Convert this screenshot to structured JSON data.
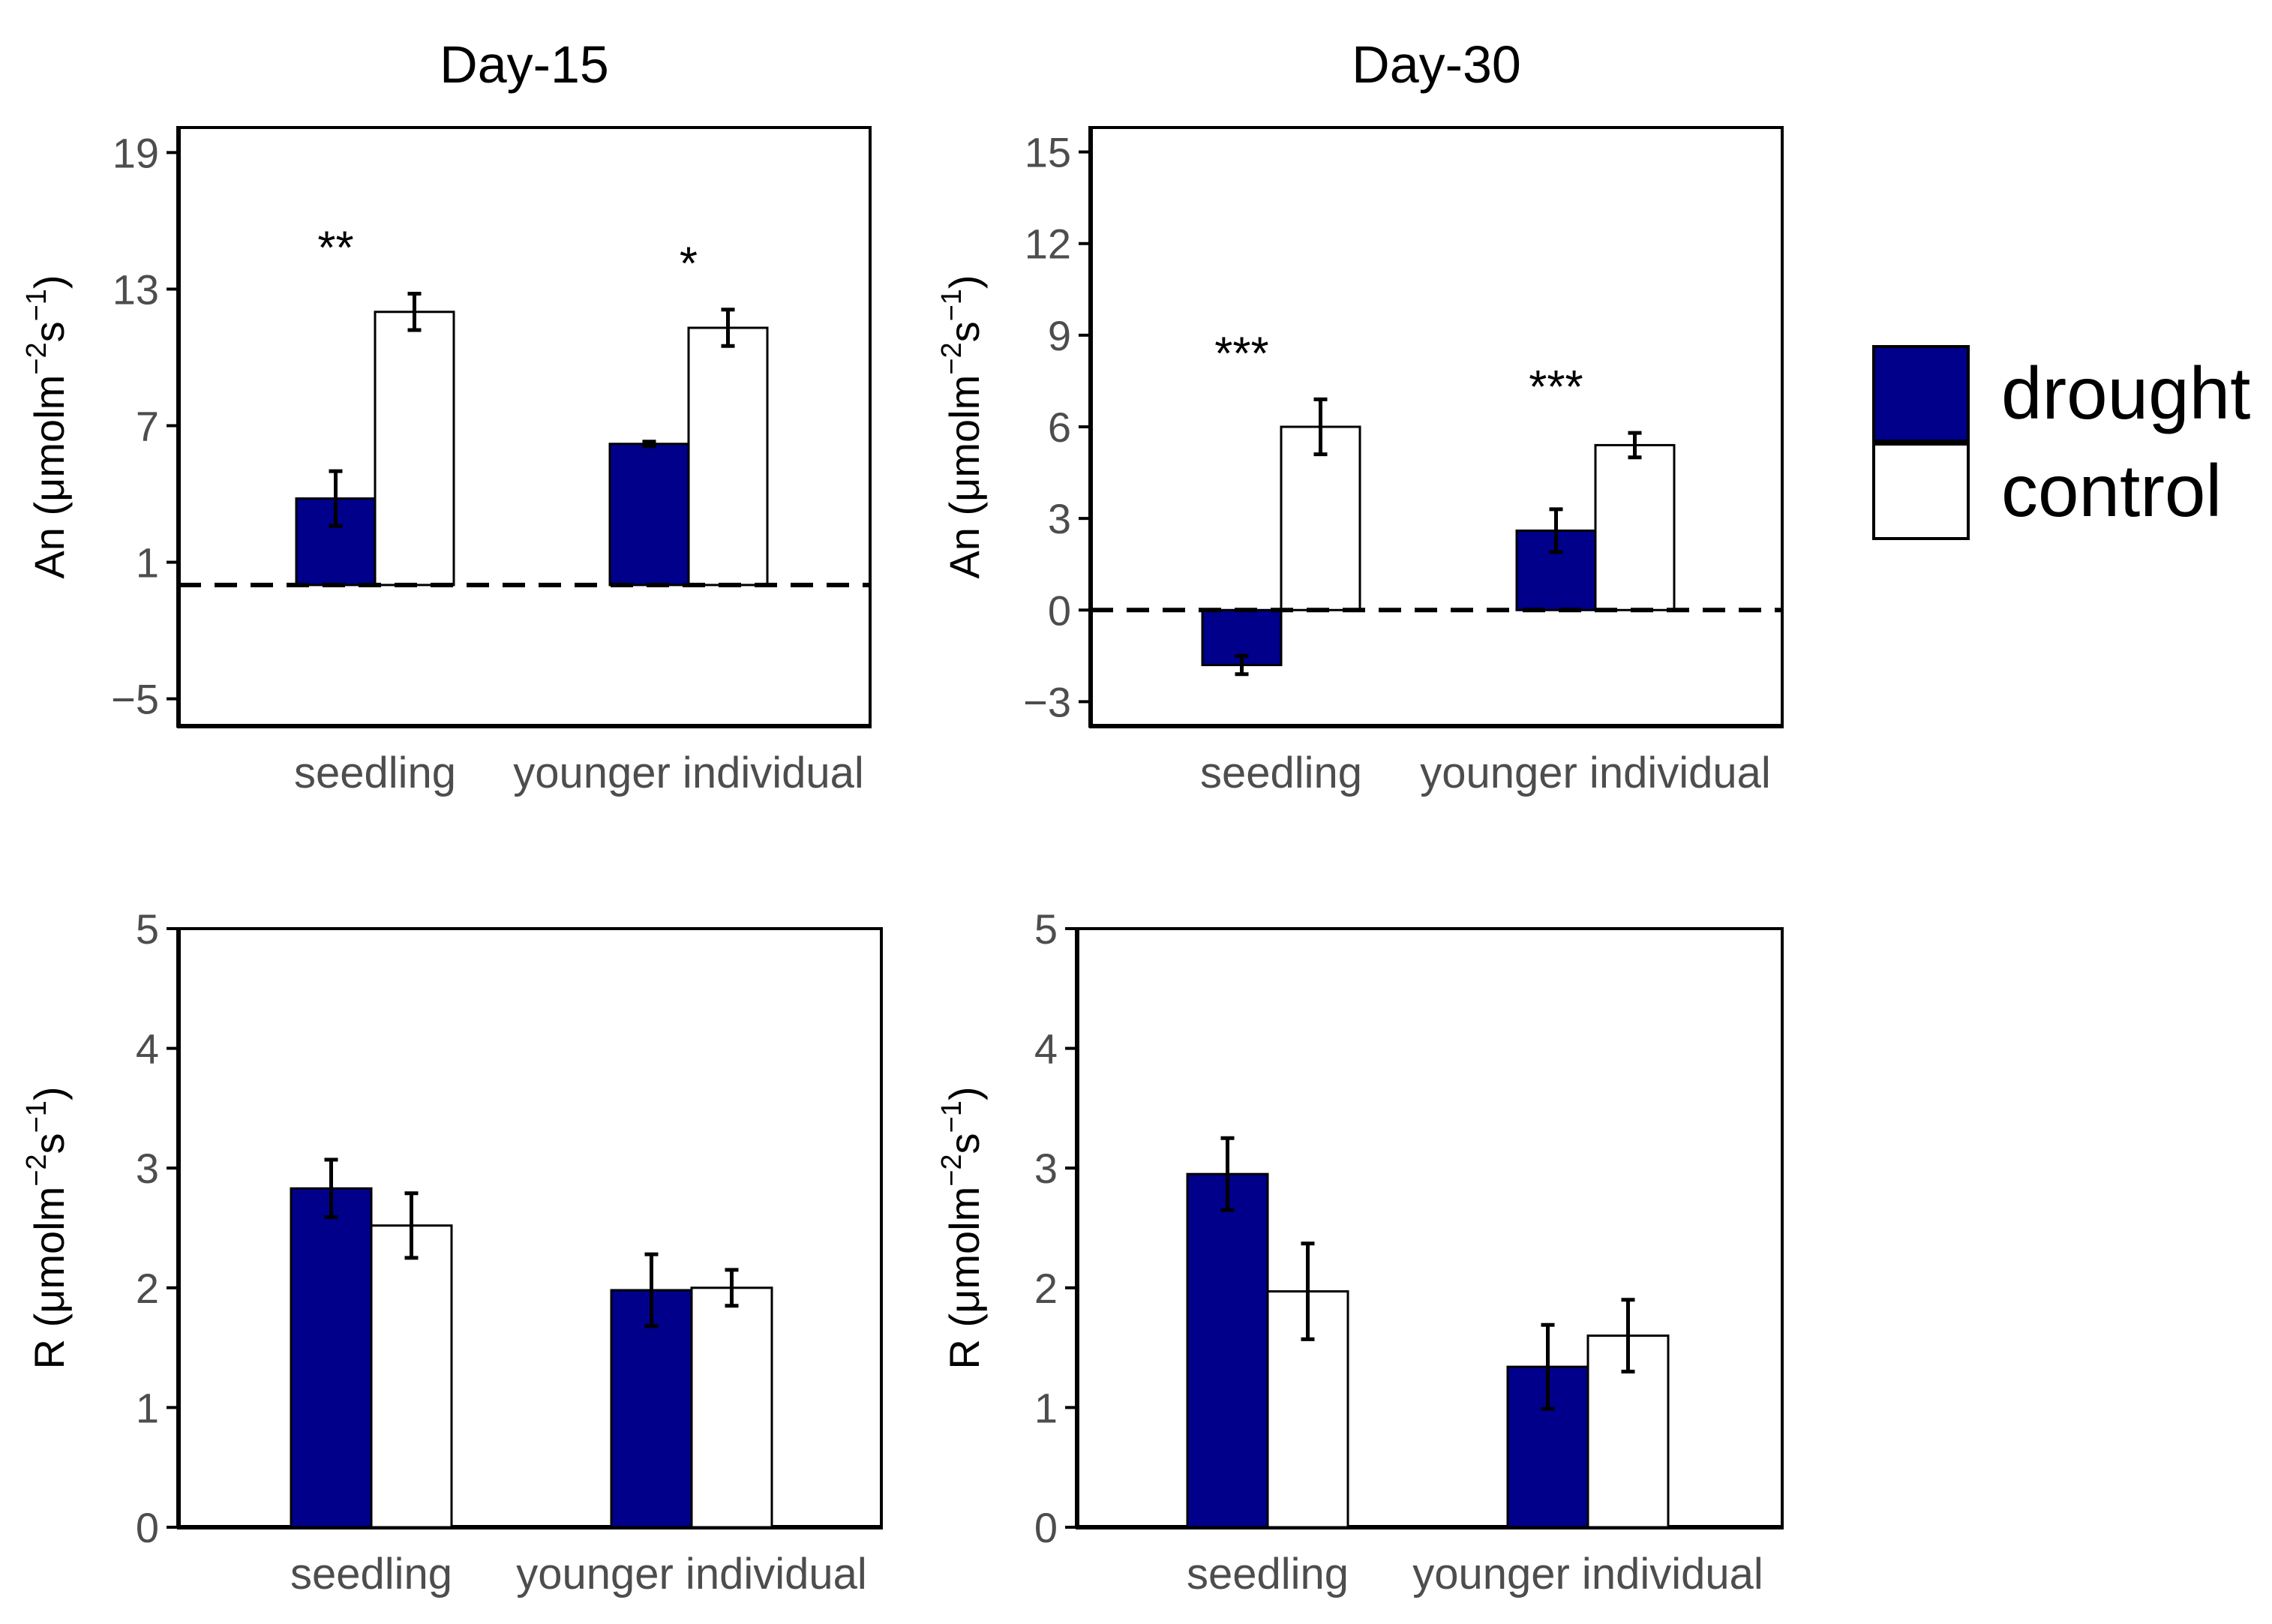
{
  "colors": {
    "drought": "#00008b",
    "control": "#ffffff",
    "axis": "#000000",
    "tick_text": "#4d4d4d"
  },
  "legend": {
    "entries": [
      {
        "label": "drought",
        "color": "#00008b"
      },
      {
        "label": "control",
        "color": "#ffffff"
      }
    ],
    "placement": "right"
  },
  "chart_data": [
    {
      "type": "bar",
      "title": "Day-15",
      "ylabel": "An (μmolm-2s-1)",
      "ylabel_parts": {
        "pre": "An (μmolm",
        "sup1": "−2",
        "mid": "s",
        "sup2": "−1",
        "post": ")"
      },
      "categories": [
        "seedling",
        "younger individual"
      ],
      "ylim": [
        -6.2,
        20.1
      ],
      "yticks": [
        19,
        13,
        7,
        1,
        -5
      ],
      "ytick_labels": [
        "19",
        "13",
        "7",
        "1",
        "−5"
      ],
      "baseline": 0,
      "dashed_zero": true,
      "series": [
        {
          "name": "drought",
          "values": [
            3.8,
            6.2
          ],
          "errors": [
            1.2,
            0.1
          ]
        },
        {
          "name": "control",
          "values": [
            12.0,
            11.3
          ],
          "errors": [
            0.8,
            0.8
          ]
        }
      ],
      "significance": [
        "**",
        "*"
      ]
    },
    {
      "type": "bar",
      "title": "Day-30",
      "ylabel": "An (μmolm-2s-1)",
      "ylabel_parts": {
        "pre": "An (μmolm",
        "sup1": "−2",
        "mid": "s",
        "sup2": "−1",
        "post": ")"
      },
      "categories": [
        "seedling",
        "younger individual"
      ],
      "ylim": [
        -3.8,
        15.8
      ],
      "yticks": [
        15,
        12,
        9,
        6,
        3,
        0,
        -3
      ],
      "ytick_labels": [
        "15",
        "12",
        "9",
        "6",
        "3",
        "0",
        "−3"
      ],
      "baseline": 0,
      "dashed_zero": true,
      "series": [
        {
          "name": "drought",
          "values": [
            -1.8,
            2.6
          ],
          "errors": [
            0.3,
            0.7
          ]
        },
        {
          "name": "control",
          "values": [
            6.0,
            5.4
          ],
          "errors": [
            0.9,
            0.4
          ]
        }
      ],
      "significance": [
        "***",
        "***"
      ]
    },
    {
      "type": "bar",
      "title": "",
      "ylabel": "R (μmolm-2s-1)",
      "ylabel_parts": {
        "pre": "R (μmolm",
        "sup1": "−2",
        "mid": "s",
        "sup2": "−1",
        "post": ")"
      },
      "categories": [
        "seedling",
        "younger individual"
      ],
      "ylim": [
        0,
        5
      ],
      "yticks": [
        5,
        4,
        3,
        2,
        1,
        0
      ],
      "ytick_labels": [
        "5",
        "4",
        "3",
        "2",
        "1",
        "0"
      ],
      "baseline": 0,
      "dashed_zero": false,
      "series": [
        {
          "name": "drought",
          "values": [
            2.83,
            1.98
          ],
          "errors": [
            0.24,
            0.3
          ]
        },
        {
          "name": "control",
          "values": [
            2.52,
            2.0
          ],
          "errors": [
            0.27,
            0.15
          ]
        }
      ],
      "significance": [
        "",
        ""
      ]
    },
    {
      "type": "bar",
      "title": "",
      "ylabel": "R (μmolm-2s-1)",
      "ylabel_parts": {
        "pre": "R (μmolm",
        "sup1": "−2",
        "mid": "s",
        "sup2": "−1",
        "post": ")"
      },
      "categories": [
        "seedling",
        "younger individual"
      ],
      "ylim": [
        0,
        5
      ],
      "yticks": [
        5,
        4,
        3,
        2,
        1,
        0
      ],
      "ytick_labels": [
        "5",
        "4",
        "3",
        "2",
        "1",
        "0"
      ],
      "baseline": 0,
      "dashed_zero": false,
      "series": [
        {
          "name": "drought",
          "values": [
            2.95,
            1.34
          ],
          "errors": [
            0.3,
            0.35
          ]
        },
        {
          "name": "control",
          "values": [
            1.97,
            1.6
          ],
          "errors": [
            0.4,
            0.3
          ]
        }
      ],
      "significance": [
        "",
        ""
      ]
    }
  ]
}
